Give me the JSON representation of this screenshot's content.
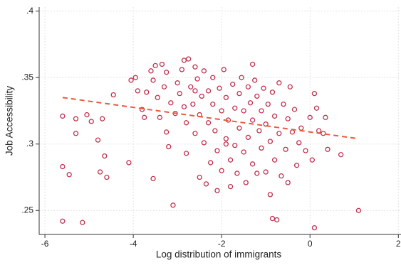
{
  "chart_data": {
    "type": "scatter",
    "x_label": "Log distribution of immigrants",
    "y_label": "Job Accessibility",
    "color": "#c2304f",
    "x": [
      -5.6,
      -5.6,
      -5.6,
      -5.45,
      -5.3,
      -5.3,
      -5.15,
      -5.05,
      -4.95,
      -4.8,
      -4.75,
      -4.7,
      -4.65,
      -4.6,
      -4.45,
      -4.1,
      -4.05,
      -3.95,
      -3.9,
      -3.8,
      -3.75,
      -3.7,
      -3.6,
      -3.55,
      -3.55,
      -3.5,
      -3.45,
      -3.4,
      -3.35,
      -3.3,
      -3.25,
      -3.25,
      -3.2,
      -3.15,
      -3.1,
      -3.05,
      -3.0,
      -2.95,
      -2.9,
      -2.85,
      -2.85,
      -2.8,
      -2.8,
      -2.75,
      -2.7,
      -2.65,
      -2.6,
      -2.6,
      -2.55,
      -2.5,
      -2.5,
      -2.45,
      -2.4,
      -2.4,
      -2.35,
      -2.3,
      -2.3,
      -2.25,
      -2.2,
      -2.2,
      -2.15,
      -2.1,
      -2.1,
      -2.05,
      -2.0,
      -2.0,
      -1.95,
      -1.9,
      -1.9,
      -1.85,
      -1.8,
      -1.8,
      -1.75,
      -1.7,
      -1.7,
      -1.65,
      -1.6,
      -1.6,
      -1.55,
      -1.5,
      -1.5,
      -1.45,
      -1.4,
      -1.4,
      -1.35,
      -1.3,
      -1.3,
      -1.25,
      -1.2,
      -1.2,
      -1.15,
      -1.1,
      -1.1,
      -1.05,
      -1.0,
      -1.0,
      -0.95,
      -0.9,
      -0.9,
      -0.85,
      -0.8,
      -0.8,
      -0.75,
      -0.7,
      -0.7,
      -0.65,
      -0.6,
      -0.55,
      -0.5,
      -0.5,
      -0.45,
      -0.4,
      -0.35,
      -0.3,
      -0.25,
      -0.2,
      -0.1,
      0.0,
      0.05,
      0.1,
      0.1,
      0.15,
      0.2,
      0.3,
      0.4,
      0.35,
      0.7,
      1.1,
      -0.85,
      -1.9,
      -2.6,
      -1.3
    ],
    "values": [
      0.321,
      0.283,
      0.242,
      0.277,
      0.319,
      0.308,
      0.241,
      0.322,
      0.317,
      0.303,
      0.279,
      0.319,
      0.291,
      0.275,
      0.337,
      0.286,
      0.348,
      0.35,
      0.34,
      0.326,
      0.32,
      0.339,
      0.355,
      0.348,
      0.274,
      0.359,
      0.335,
      0.32,
      0.36,
      0.343,
      0.354,
      0.309,
      0.298,
      0.331,
      0.254,
      0.323,
      0.346,
      0.338,
      0.356,
      0.328,
      0.363,
      0.293,
      0.316,
      0.364,
      0.343,
      0.33,
      0.308,
      0.358,
      0.349,
      0.275,
      0.322,
      0.336,
      0.301,
      0.355,
      0.27,
      0.34,
      0.316,
      0.286,
      0.33,
      0.35,
      0.31,
      0.265,
      0.295,
      0.342,
      0.325,
      0.28,
      0.356,
      0.335,
      0.304,
      0.318,
      0.288,
      0.268,
      0.345,
      0.327,
      0.299,
      0.278,
      0.338,
      0.312,
      0.35,
      0.325,
      0.294,
      0.271,
      0.343,
      0.305,
      0.331,
      0.318,
      0.285,
      0.348,
      0.336,
      0.278,
      0.31,
      0.297,
      0.325,
      0.342,
      0.279,
      0.315,
      0.33,
      0.302,
      0.262,
      0.339,
      0.321,
      0.288,
      0.243,
      0.346,
      0.308,
      0.276,
      0.33,
      0.296,
      0.319,
      0.271,
      0.343,
      0.309,
      0.326,
      0.284,
      0.301,
      0.312,
      0.295,
      0.32,
      0.288,
      0.338,
      0.237,
      0.327,
      0.31,
      0.308,
      0.296,
      0.32,
      0.292,
      0.25,
      0.244,
      0.3,
      0.34,
      0.36
    ],
    "fit_line": {
      "x": [
        -5.6,
        1.1
      ],
      "values": [
        0.335,
        0.304
      ],
      "color": "#ea5a3c"
    },
    "xlim": [
      -6.13,
      2.06
    ],
    "ylim": [
      0.232,
      0.403
    ],
    "xticks": [
      -6,
      -4,
      -2,
      0,
      2
    ],
    "yticks": [
      {
        "value": 0.25,
        "label": ".25"
      },
      {
        "value": 0.3,
        "label": ".3"
      },
      {
        "value": 0.35,
        "label": ".35"
      },
      {
        "value": 0.4,
        "label": ".4"
      }
    ],
    "grid": true
  }
}
